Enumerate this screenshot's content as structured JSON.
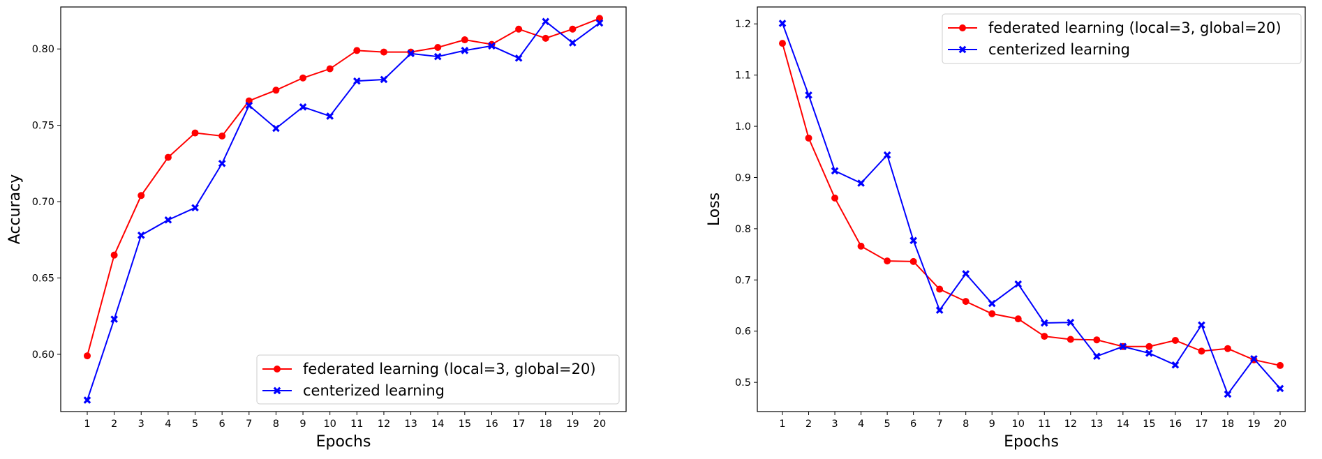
{
  "chart_data": [
    {
      "type": "line",
      "xlabel": "Epochs",
      "ylabel": "Accuracy",
      "x": [
        1,
        2,
        3,
        4,
        5,
        6,
        7,
        8,
        9,
        10,
        11,
        12,
        13,
        14,
        15,
        16,
        17,
        18,
        19,
        20
      ],
      "ylim": [
        0.5625,
        0.8275
      ],
      "yticks": [
        "0.60",
        "0.65",
        "0.70",
        "0.75",
        "0.80"
      ],
      "grid": false,
      "legend_position": "lower right",
      "series": [
        {
          "name": "federated learning (local=3, global=20)",
          "color": "#ff0000",
          "marker": "circle",
          "values": [
            0.599,
            0.665,
            0.704,
            0.729,
            0.745,
            0.743,
            0.766,
            0.773,
            0.781,
            0.787,
            0.799,
            0.798,
            0.798,
            0.801,
            0.806,
            0.803,
            0.813,
            0.807,
            0.813,
            0.82
          ]
        },
        {
          "name": "centerized learning",
          "color": "#0000ff",
          "marker": "x",
          "values": [
            0.57,
            0.623,
            0.678,
            0.688,
            0.696,
            0.725,
            0.763,
            0.748,
            0.762,
            0.756,
            0.779,
            0.78,
            0.797,
            0.795,
            0.799,
            0.802,
            0.794,
            0.818,
            0.804,
            0.817
          ]
        }
      ]
    },
    {
      "type": "line",
      "xlabel": "Epochs",
      "ylabel": "Loss",
      "x": [
        1,
        2,
        3,
        4,
        5,
        6,
        7,
        8,
        9,
        10,
        11,
        12,
        13,
        14,
        15,
        16,
        17,
        18,
        19,
        20
      ],
      "ylim": [
        0.443,
        1.233
      ],
      "yticks": [
        "0.5",
        "0.6",
        "0.7",
        "0.8",
        "0.9",
        "1.0",
        "1.1",
        "1.2"
      ],
      "grid": false,
      "legend_position": "upper right",
      "series": [
        {
          "name": "federated learning (local=3, global=20)",
          "color": "#ff0000",
          "marker": "circle",
          "values": [
            1.162,
            0.977,
            0.86,
            0.766,
            0.737,
            0.736,
            0.682,
            0.658,
            0.634,
            0.624,
            0.59,
            0.584,
            0.583,
            0.57,
            0.57,
            0.582,
            0.561,
            0.566,
            0.544,
            0.533
          ]
        },
        {
          "name": "centerized learning",
          "color": "#0000ff",
          "marker": "x",
          "values": [
            1.201,
            1.061,
            0.913,
            0.889,
            0.944,
            0.777,
            0.641,
            0.712,
            0.654,
            0.692,
            0.616,
            0.617,
            0.551,
            0.57,
            0.557,
            0.534,
            0.612,
            0.477,
            0.546,
            0.488
          ]
        }
      ]
    }
  ]
}
